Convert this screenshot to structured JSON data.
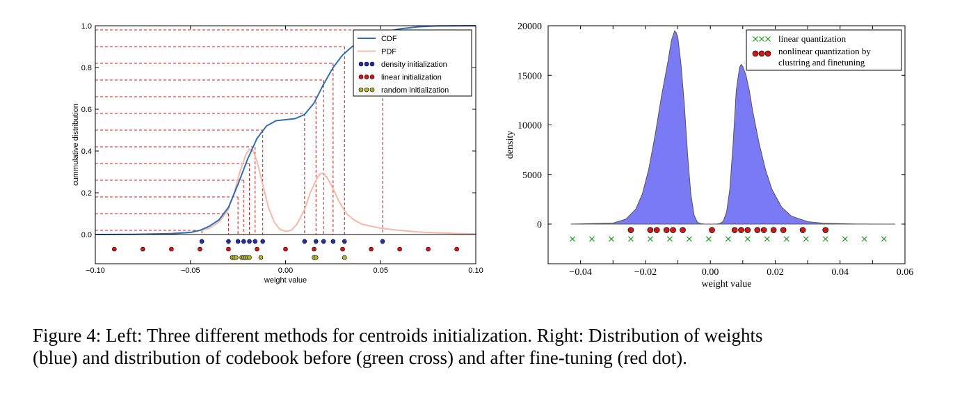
{
  "caption": {
    "line1": "Figure 4: Left: Three different methods for centroids initialization. Right: Distribution of weights",
    "line2": "(blue) and distribution of codebook before (green cross) and after fine-tuning (red dot)."
  },
  "chart_data": [
    {
      "type": "line",
      "xlabel": "weight value",
      "ylabel": "cummulative distribution",
      "xlim": [
        -0.1,
        0.1
      ],
      "ylim": [
        -0.14,
        1.0
      ],
      "xticks": [
        "−0.10",
        "−0.05",
        "0.00",
        "0.05",
        "0.10"
      ],
      "yticks": [
        "0.0",
        "0.2",
        "0.4",
        "0.6",
        "0.8",
        "1.0"
      ],
      "legend_position": "top-right",
      "colors": {
        "cdf": "#2f6db5",
        "pdf": "#f7b8a8",
        "density": "#1f2fb0",
        "linear": "#d01818",
        "random": "#b5b52a",
        "guide": "#d01818"
      },
      "series": [
        {
          "name": "CDF",
          "x": [
            -0.1,
            -0.08,
            -0.06,
            -0.05,
            -0.045,
            -0.04,
            -0.035,
            -0.03,
            -0.025,
            -0.02,
            -0.015,
            -0.01,
            -0.005,
            0.0,
            0.005,
            0.01,
            0.015,
            0.02,
            0.025,
            0.03,
            0.035,
            0.04,
            0.05,
            0.06,
            0.07,
            0.08,
            0.1
          ],
          "y": [
            0.0,
            0.001,
            0.004,
            0.01,
            0.02,
            0.04,
            0.07,
            0.13,
            0.24,
            0.36,
            0.46,
            0.52,
            0.545,
            0.55,
            0.555,
            0.575,
            0.63,
            0.72,
            0.8,
            0.86,
            0.9,
            0.93,
            0.965,
            0.985,
            0.995,
            0.999,
            1.0
          ]
        },
        {
          "name": "PDF",
          "x": [
            -0.07,
            -0.05,
            -0.04,
            -0.035,
            -0.03,
            -0.027,
            -0.024,
            -0.021,
            -0.019,
            -0.017,
            -0.015,
            -0.012,
            -0.009,
            -0.006,
            -0.003,
            0.0,
            0.003,
            0.006,
            0.01,
            0.013,
            0.016,
            0.018,
            0.02,
            0.022,
            0.025,
            0.028,
            0.032,
            0.036,
            0.04,
            0.05,
            0.06,
            0.07,
            0.08,
            0.09,
            0.1
          ],
          "y": [
            0.0,
            0.01,
            0.03,
            0.06,
            0.12,
            0.2,
            0.3,
            0.38,
            0.41,
            0.4,
            0.35,
            0.24,
            0.13,
            0.06,
            0.025,
            0.015,
            0.02,
            0.05,
            0.12,
            0.2,
            0.26,
            0.29,
            0.295,
            0.27,
            0.22,
            0.16,
            0.1,
            0.07,
            0.05,
            0.03,
            0.02,
            0.012,
            0.008,
            0.005,
            0.003
          ]
        },
        {
          "name": "density initialization",
          "x": [
            -0.044,
            -0.03,
            -0.025,
            -0.022,
            -0.019,
            -0.016,
            -0.012,
            0.01,
            0.016,
            0.02,
            0.025,
            0.031,
            0.051
          ]
        },
        {
          "name": "linear initialization",
          "x": [
            -0.09,
            -0.075,
            -0.06,
            -0.045,
            -0.03,
            -0.015,
            0.0,
            0.015,
            0.03,
            0.045,
            0.06,
            0.075,
            0.09
          ]
        },
        {
          "name": "random initialization",
          "x": [
            -0.028,
            -0.027,
            -0.026,
            -0.023,
            -0.022,
            -0.021,
            -0.02,
            -0.019,
            -0.013,
            0.015,
            0.016,
            0.031
          ]
        }
      ],
      "guide_lines": [
        {
          "x": -0.044,
          "y": 0.02
        },
        {
          "x": -0.03,
          "y": 0.1
        },
        {
          "x": -0.025,
          "y": 0.18
        },
        {
          "x": -0.022,
          "y": 0.26
        },
        {
          "x": -0.019,
          "y": 0.34
        },
        {
          "x": -0.016,
          "y": 0.42
        },
        {
          "x": -0.012,
          "y": 0.5
        },
        {
          "x": 0.01,
          "y": 0.58
        },
        {
          "x": 0.016,
          "y": 0.66
        },
        {
          "x": 0.02,
          "y": 0.74
        },
        {
          "x": 0.025,
          "y": 0.82
        },
        {
          "x": 0.031,
          "y": 0.9
        },
        {
          "x": 0.051,
          "y": 0.98
        }
      ]
    },
    {
      "type": "area",
      "xlabel": "weight value",
      "ylabel": "density",
      "xlim": [
        -0.05,
        0.06
      ],
      "ylim": [
        -4000,
        20000
      ],
      "xticks": [
        "−0.04",
        "−0.02",
        "0.00",
        "0.02",
        "0.04",
        "0.06"
      ],
      "yticks": [
        "0",
        "5000",
        "10000",
        "15000",
        "20000"
      ],
      "legend_position": "top-right",
      "colors": {
        "fill": "#7a7af5",
        "edge": "#555555",
        "cross": "#1a9a1a",
        "dot": "#d01818"
      },
      "series": [
        {
          "name": "weights",
          "x": [
            -0.043,
            -0.03,
            -0.026,
            -0.023,
            -0.021,
            -0.019,
            -0.017,
            -0.015,
            -0.013,
            -0.012,
            -0.011,
            -0.0105,
            -0.01,
            -0.009,
            -0.008,
            -0.007,
            -0.006,
            -0.005,
            -0.004,
            -0.003,
            -0.002,
            -0.001,
            0.0,
            0.001,
            0.002,
            0.003,
            0.004,
            0.005,
            0.006,
            0.007,
            0.008,
            0.009,
            0.0095,
            0.01,
            0.011,
            0.012,
            0.013,
            0.015,
            0.017,
            0.019,
            0.022,
            0.025,
            0.03,
            0.035,
            0.045,
            0.057
          ],
          "y": [
            0,
            100,
            500,
            1500,
            3000,
            5500,
            9000,
            13000,
            16500,
            18500,
            19500,
            19300,
            18800,
            16000,
            12000,
            7000,
            3000,
            900,
            200,
            40,
            5,
            0,
            0,
            0,
            5,
            60,
            300,
            1200,
            3500,
            8000,
            13500,
            15800,
            16100,
            15900,
            15000,
            13500,
            11500,
            8200,
            5500,
            3500,
            1700,
            800,
            250,
            80,
            10,
            0
          ]
        },
        {
          "name": "linear quantization",
          "x": [
            -0.0425,
            -0.0365,
            -0.0305,
            -0.0245,
            -0.0185,
            -0.0125,
            -0.0065,
            -0.0005,
            0.0055,
            0.0115,
            0.0175,
            0.0235,
            0.0295,
            0.0355,
            0.0415,
            0.0475,
            0.0535
          ]
        },
        {
          "name": "nonlinear quantization by clustring and finetuning",
          "x": [
            -0.0245,
            -0.0185,
            -0.0165,
            -0.0135,
            -0.0115,
            -0.0085,
            0.0005,
            0.0075,
            0.0095,
            0.0115,
            0.0145,
            0.0165,
            0.0195,
            0.0225,
            0.0285,
            0.0355
          ]
        }
      ],
      "legend": {
        "cross_label": "linear quantization",
        "dot_label_line1": "nonlinear quantization by",
        "dot_label_line2": "clustring and finetuning"
      }
    }
  ]
}
